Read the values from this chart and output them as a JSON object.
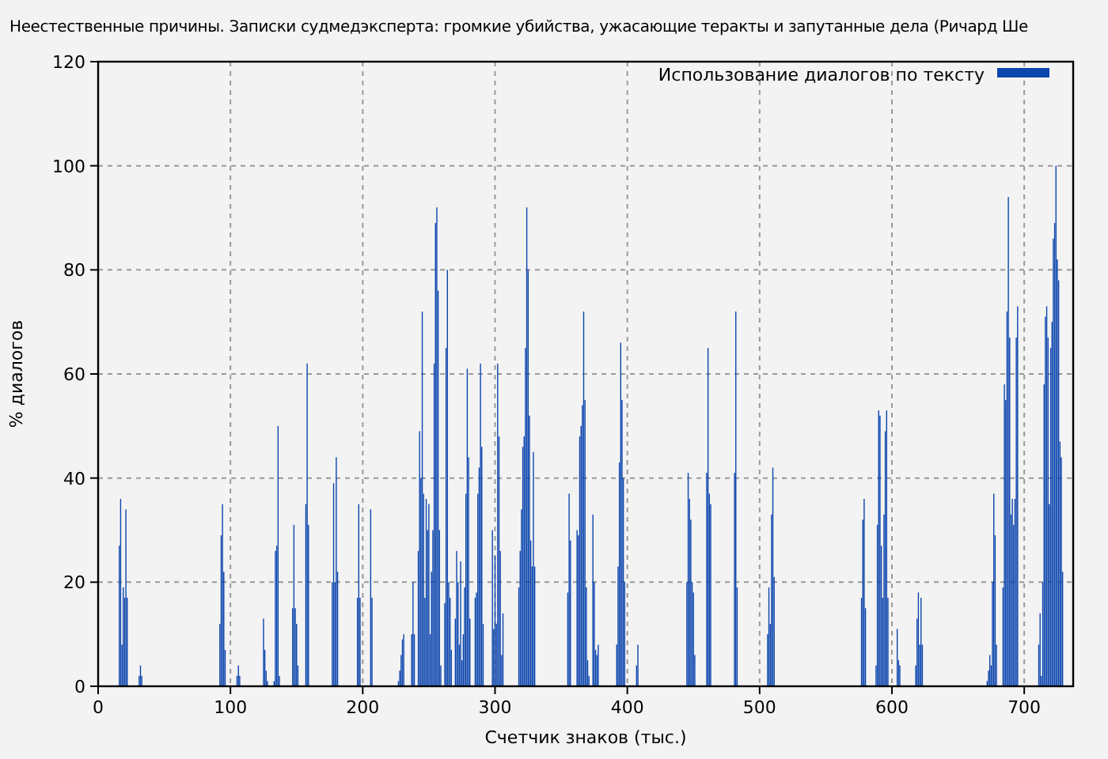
{
  "chart_data": {
    "type": "bar",
    "title": "Неестественные причины. Записки судмедэксперта: громкие убийства, ужасающие теракты и запутанные дела (Ричард Ше",
    "xlabel": "Счетчик знаков (тыс.)",
    "ylabel": "% диалогов",
    "xlim": [
      0,
      737
    ],
    "ylim": [
      0,
      120
    ],
    "xticks": [
      0,
      100,
      200,
      300,
      400,
      500,
      600,
      700
    ],
    "yticks": [
      0,
      20,
      40,
      60,
      80,
      100,
      120
    ],
    "grid": true,
    "legend": "top right",
    "series": [
      {
        "name": "Использование диалогов по тексту",
        "color": "#0b45ad",
        "x": [
          16,
          17,
          18,
          19,
          20,
          21,
          22,
          31,
          32,
          33,
          92,
          93,
          94,
          95,
          96,
          105,
          106,
          107,
          125,
          126,
          127,
          128,
          133,
          134,
          135,
          136,
          137,
          147,
          148,
          149,
          150,
          151,
          157,
          158,
          159,
          177,
          178,
          179,
          180,
          181,
          196,
          197,
          198,
          206,
          207,
          227,
          228,
          229,
          230,
          231,
          237,
          238,
          239,
          242,
          243,
          244,
          245,
          246,
          247,
          248,
          249,
          250,
          251,
          252,
          253,
          254,
          255,
          256,
          257,
          258,
          259,
          262,
          263,
          264,
          265,
          266,
          267,
          270,
          271,
          272,
          273,
          274,
          275,
          276,
          277,
          278,
          279,
          280,
          281,
          285,
          286,
          287,
          288,
          289,
          290,
          291,
          298,
          299,
          300,
          301,
          302,
          303,
          304,
          305,
          306,
          318,
          319,
          320,
          321,
          322,
          323,
          324,
          325,
          326,
          327,
          328,
          329,
          330,
          355,
          356,
          357,
          362,
          363,
          364,
          365,
          366,
          367,
          368,
          369,
          370,
          371,
          374,
          375,
          376,
          377,
          378,
          392,
          393,
          394,
          395,
          396,
          397,
          398,
          407,
          408,
          445,
          446,
          447,
          448,
          449,
          450,
          451,
          460,
          461,
          462,
          463,
          481,
          482,
          483,
          506,
          507,
          508,
          509,
          510,
          511,
          577,
          578,
          579,
          580,
          588,
          589,
          590,
          591,
          592,
          593,
          594,
          595,
          596,
          597,
          604,
          605,
          606,
          618,
          619,
          620,
          621,
          622,
          623,
          672,
          673,
          674,
          675,
          676,
          677,
          678,
          679,
          684,
          685,
          686,
          687,
          688,
          689,
          690,
          691,
          692,
          693,
          694,
          695,
          711,
          712,
          713,
          714,
          715,
          716,
          717,
          718,
          719,
          720,
          721,
          722,
          723,
          724,
          725,
          726,
          727,
          728,
          729
        ],
        "values": [
          27,
          36,
          8,
          19,
          17,
          34,
          17,
          2,
          4,
          2,
          12,
          29,
          35,
          22,
          7,
          2,
          4,
          2,
          13,
          7,
          3,
          1,
          1,
          26,
          27,
          50,
          2,
          15,
          31,
          15,
          12,
          4,
          35,
          62,
          31,
          20,
          39,
          20,
          44,
          22,
          17,
          35,
          17,
          34,
          17,
          1,
          3,
          6,
          9,
          10,
          10,
          20,
          10,
          26,
          49,
          40,
          72,
          37,
          17,
          36,
          30,
          35,
          10,
          22,
          30,
          62,
          89,
          92,
          76,
          30,
          4,
          16,
          65,
          80,
          20,
          17,
          7,
          13,
          26,
          20,
          8,
          24,
          5,
          10,
          19,
          37,
          61,
          44,
          13,
          17,
          18,
          37,
          42,
          62,
          46,
          12,
          30,
          11,
          25,
          12,
          62,
          48,
          26,
          6,
          14,
          19,
          26,
          34,
          46,
          48,
          65,
          92,
          80,
          52,
          28,
          23,
          45,
          23,
          18,
          37,
          28,
          30,
          29,
          48,
          50,
          54,
          72,
          55,
          19,
          5,
          2,
          33,
          20,
          7,
          6,
          8,
          8,
          23,
          43,
          66,
          55,
          40,
          20,
          4,
          8,
          20,
          41,
          36,
          32,
          20,
          18,
          6,
          41,
          65,
          37,
          35,
          41,
          72,
          19,
          10,
          19,
          12,
          33,
          42,
          21,
          17,
          32,
          36,
          15,
          4,
          31,
          53,
          52,
          27,
          17,
          33,
          49,
          53,
          17,
          11,
          5,
          4,
          4,
          13,
          18,
          8,
          17,
          8,
          1,
          3,
          6,
          4,
          20,
          37,
          29,
          8,
          19,
          58,
          55,
          72,
          94,
          67,
          33,
          36,
          31,
          36,
          67,
          73,
          8,
          14,
          2,
          20,
          58,
          71,
          73,
          67,
          35,
          65,
          70,
          86,
          89,
          100,
          82,
          78,
          47,
          44,
          22
        ]
      }
    ]
  }
}
